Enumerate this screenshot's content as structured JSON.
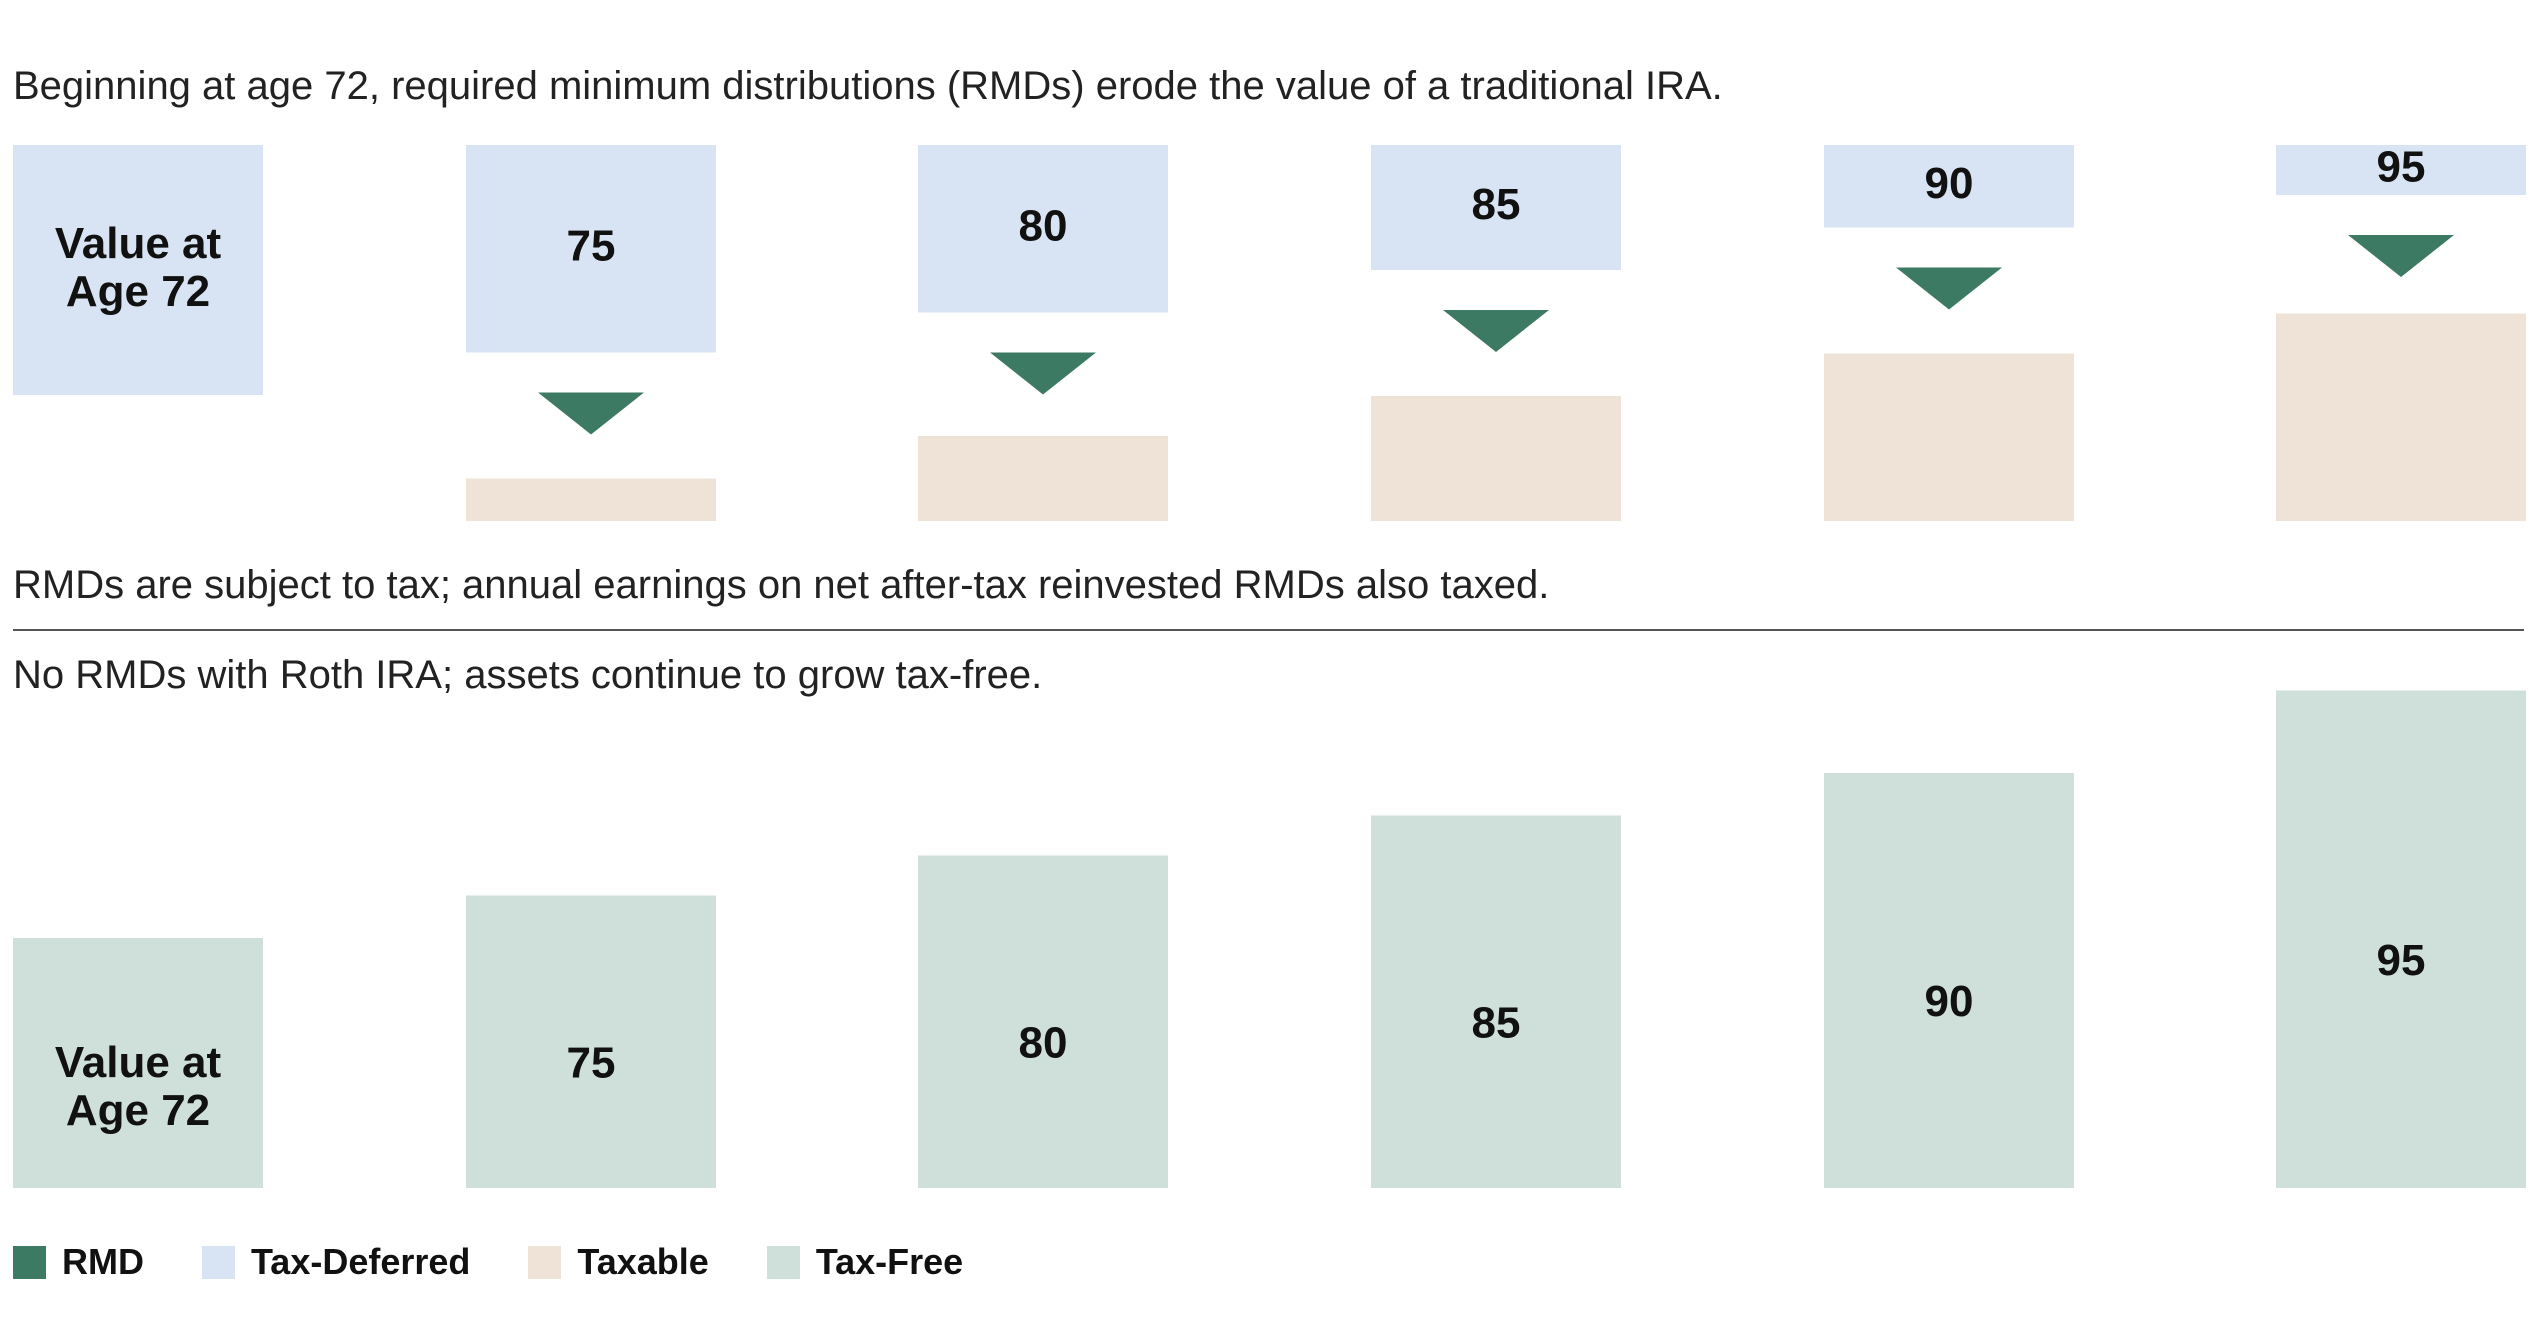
{
  "captions": {
    "top": "Beginning at age 72, required minimum distributions (RMDs) erode the value of a traditional IRA.",
    "middle": "RMDs are subject to tax; annual earnings on net after-tax reinvested RMDs also taxed.",
    "bottom": "No RMDs with Roth IRA; assets continue to grow tax-free."
  },
  "colors": {
    "rmd": "#3d7a63",
    "tax_deferred": "#d8e4f4",
    "taxable": "#efe3d8",
    "tax_free": "#cfdfd9"
  },
  "legend": [
    {
      "key": "rmd",
      "label": "RMD",
      "color": "#3d7a63"
    },
    {
      "key": "tax_deferred",
      "label": "Tax-Deferred",
      "color": "#d8e4f4"
    },
    {
      "key": "taxable",
      "label": "Taxable",
      "color": "#efe3d8"
    },
    {
      "key": "tax_free",
      "label": "Tax-Free",
      "color": "#cfdfd9"
    }
  ],
  "chart_data": [
    {
      "type": "bar",
      "panel": "traditional-ira",
      "categories": [
        "Value at Age 72",
        "75",
        "80",
        "85",
        "90",
        "95"
      ],
      "series": [
        {
          "name": "Tax-Deferred",
          "values": [
            100,
            83,
            67,
            50,
            33,
            20
          ]
        },
        {
          "name": "Taxable",
          "values": [
            0,
            17,
            34,
            50,
            67,
            83
          ]
        }
      ],
      "rmd_marker": [
        false,
        true,
        true,
        true,
        true,
        true
      ]
    },
    {
      "type": "bar",
      "panel": "roth-ira",
      "categories": [
        "Value at Age 72",
        "75",
        "80",
        "85",
        "90",
        "95"
      ],
      "series": [
        {
          "name": "Tax-Free",
          "values": [
            100,
            117,
            133,
            149,
            166,
            199
          ]
        }
      ]
    }
  ]
}
